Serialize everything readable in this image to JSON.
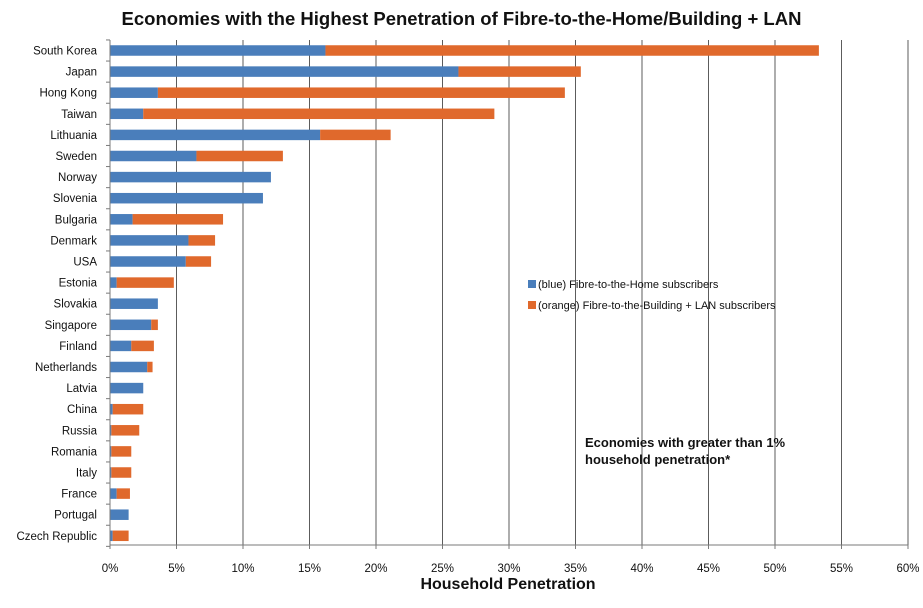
{
  "chart_data": {
    "type": "bar",
    "orientation": "horizontal",
    "stacked": true,
    "title": "Economies with the Highest Penetration of Fibre-to-the-Home/Building + LAN",
    "xlabel": "Household Penetration",
    "ylabel": "",
    "xlim": [
      0,
      60
    ],
    "x_tick_labels": [
      "0%",
      "5%",
      "10%",
      "15%",
      "20%",
      "25%",
      "30%",
      "35%",
      "40%",
      "45%",
      "50%",
      "55%",
      "60%"
    ],
    "grid": "vertical",
    "categories": [
      "South Korea",
      "Japan",
      "Hong Kong",
      "Taiwan",
      "Lithuania",
      "Sweden",
      "Norway",
      "Slovenia",
      "Bulgaria",
      "Denmark",
      "USA",
      "Estonia",
      "Slovakia",
      "Singapore",
      "Finland",
      "Netherlands",
      "Latvia",
      "China",
      "Russia",
      "Romania",
      "Italy",
      "France",
      "Portugal",
      "Czech Republic"
    ],
    "series": [
      {
        "name": "(blue) Fibre-to-the-Home subscribers",
        "color": "#4a7ebb",
        "values": [
          16.2,
          26.2,
          3.6,
          2.5,
          15.8,
          6.5,
          12.1,
          11.5,
          1.7,
          5.9,
          5.7,
          0.5,
          3.6,
          3.1,
          1.6,
          2.8,
          2.5,
          0.2,
          0.1,
          0.1,
          0.1,
          0.5,
          1.4,
          0.2
        ]
      },
      {
        "name": "(orange) Fibre-to-the-Building + LAN subscribers",
        "color": "#e0692c",
        "values": [
          37.1,
          9.2,
          30.6,
          26.4,
          5.3,
          6.5,
          0.0,
          0.0,
          6.8,
          2.0,
          1.9,
          4.3,
          0.0,
          0.5,
          1.7,
          0.4,
          0.0,
          2.3,
          2.1,
          1.5,
          1.5,
          1.0,
          0.0,
          1.2
        ]
      }
    ],
    "legend_position": "right-middle",
    "annotation": [
      "Economies with greater than 1%",
      "household penetration*"
    ]
  }
}
